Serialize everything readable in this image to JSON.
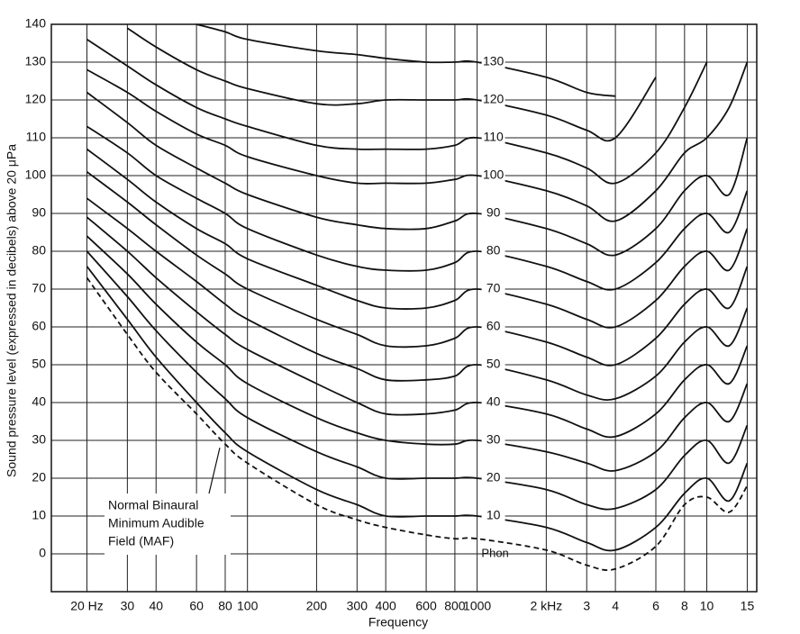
{
  "chart_data": {
    "type": "line",
    "x_label": "Frequency",
    "y_label": "Sound pressure level (expressed in decibels) above 20 μPa",
    "log_x": true,
    "grid": true,
    "color": "#111111",
    "xlim": [
      14,
      16500
    ],
    "ylim": [
      -10,
      140
    ],
    "xticks": [
      {
        "value": 20,
        "label": "20 Hz"
      },
      30,
      40,
      60,
      80,
      100,
      200,
      300,
      400,
      600,
      800,
      1000,
      {
        "value": 2000,
        "label": "2 kHz"
      },
      {
        "value": 3000,
        "label": "3"
      },
      {
        "value": 4000,
        "label": "4"
      },
      {
        "value": 6000,
        "label": "6"
      },
      {
        "value": 8000,
        "label": "8"
      },
      {
        "value": 10000,
        "label": "10"
      },
      {
        "value": 15000,
        "label": "15"
      }
    ],
    "yticks": [
      0,
      10,
      20,
      30,
      40,
      50,
      60,
      70,
      80,
      90,
      100,
      110,
      120,
      130,
      140
    ],
    "x": [
      20,
      30,
      40,
      60,
      80,
      100,
      200,
      300,
      400,
      600,
      800,
      1000,
      2000,
      3000,
      4000,
      6000,
      8000,
      10000,
      12500,
      15000
    ],
    "series_unit": "Phon",
    "series": [
      {
        "name": "10",
        "values": [
          76,
          62,
          52,
          40,
          32,
          27,
          17,
          13,
          10,
          10,
          10,
          10,
          7,
          3,
          1,
          7,
          16,
          20,
          14,
          24
        ]
      },
      {
        "name": "20",
        "values": [
          80,
          68,
          59,
          48,
          41,
          36,
          27,
          23,
          20,
          20,
          20,
          20,
          17,
          13,
          12,
          17,
          26,
          30,
          24,
          34
        ]
      },
      {
        "name": "30",
        "values": [
          84,
          74,
          66,
          56,
          50,
          45,
          36,
          32,
          30,
          29,
          29,
          30,
          27,
          24,
          22,
          27,
          36,
          40,
          35,
          45
        ]
      },
      {
        "name": "40",
        "values": [
          89,
          80,
          73,
          64,
          58,
          54,
          45,
          40,
          37,
          37,
          38,
          40,
          37,
          33,
          31,
          37,
          46,
          50,
          45,
          55
        ]
      },
      {
        "name": "50",
        "values": [
          94,
          86,
          80,
          72,
          66,
          62,
          53,
          49,
          46,
          46,
          47,
          50,
          46,
          42,
          41,
          47,
          56,
          60,
          55,
          65
        ]
      },
      {
        "name": "60",
        "values": [
          101,
          93,
          87,
          79,
          74,
          70,
          62,
          58,
          55,
          55,
          57,
          60,
          56,
          52,
          50,
          57,
          66,
          70,
          65,
          76
        ]
      },
      {
        "name": "70",
        "values": [
          107,
          99,
          93,
          86,
          82,
          78,
          71,
          67,
          65,
          65,
          67,
          70,
          66,
          62,
          60,
          67,
          76,
          80,
          75,
          86
        ]
      },
      {
        "name": "80",
        "values": [
          113,
          106,
          100,
          94,
          90,
          86,
          79,
          76,
          75,
          75,
          77,
          80,
          76,
          72,
          70,
          77,
          86,
          90,
          85,
          96
        ]
      },
      {
        "name": "90",
        "values": [
          122,
          114,
          108,
          102,
          98,
          95,
          89,
          87,
          86,
          86,
          88,
          90,
          86,
          82,
          79,
          86,
          96,
          100,
          95,
          110
        ]
      },
      {
        "name": "100",
        "values": [
          128,
          122,
          117,
          111,
          108,
          105,
          100,
          98,
          98,
          98,
          99,
          100,
          96,
          92,
          88,
          96,
          106,
          110,
          118,
          130
        ]
      },
      {
        "name": "110",
        "values": [
          136,
          129,
          124,
          118,
          115,
          113,
          108,
          107,
          107,
          107,
          108,
          110,
          106,
          102,
          98,
          106,
          118,
          130,
          null,
          null
        ]
      },
      {
        "name": "120",
        "values": [
          null,
          139,
          134,
          128,
          125,
          123,
          119,
          119,
          120,
          120,
          120,
          120,
          116,
          112,
          110,
          126,
          null,
          null,
          null,
          null
        ]
      },
      {
        "name": "130",
        "values": [
          null,
          null,
          null,
          140,
          138,
          136,
          133,
          132,
          131,
          130,
          130,
          130,
          126,
          122,
          121,
          null,
          null,
          null,
          null,
          null
        ]
      }
    ],
    "maf": {
      "label": [
        "Normal Binaural",
        "Minimum Audible",
        "Field (MAF)"
      ],
      "dashed": true,
      "values": [
        73,
        58,
        48,
        37,
        29,
        24,
        13,
        9,
        7,
        5,
        4,
        4,
        1,
        -3,
        -4,
        2,
        13,
        15,
        11,
        18
      ]
    }
  }
}
